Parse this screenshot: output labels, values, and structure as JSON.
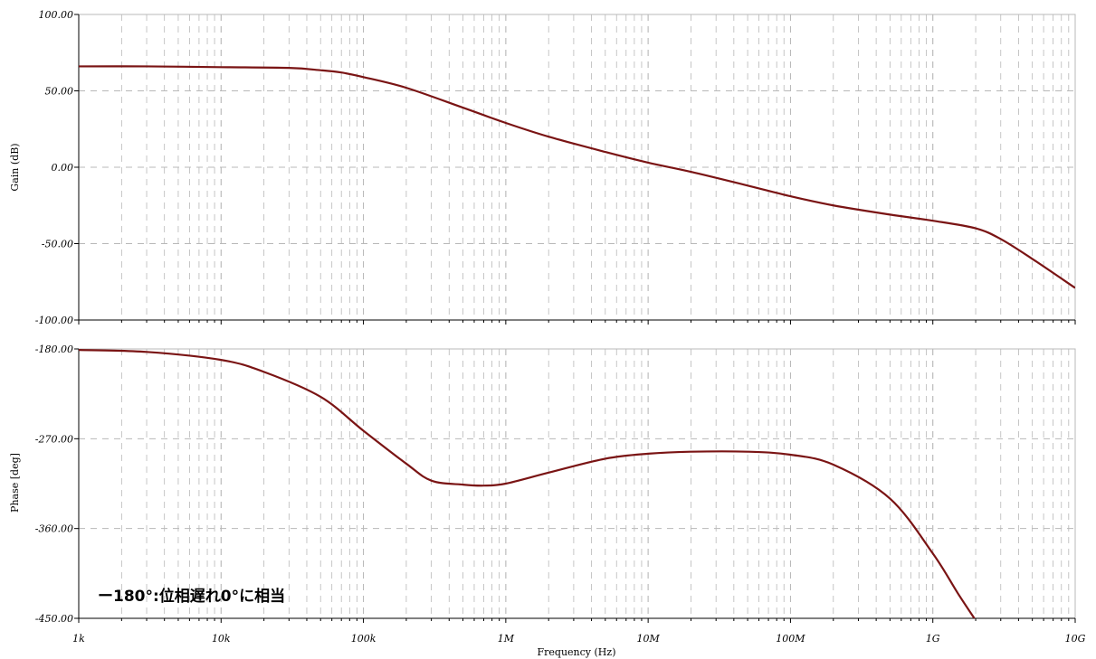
{
  "chart_data": [
    {
      "type": "line",
      "xscale": "log",
      "xlim": [
        1000,
        10000000000
      ],
      "ylim": [
        -100,
        100
      ],
      "ylabel": "Gain (dB)",
      "yticks": [
        "100.00",
        "50.00",
        "0.00",
        "-50.00",
        "-100.00"
      ],
      "ytick_values": [
        100,
        50,
        0,
        -50,
        -100
      ],
      "grid": true,
      "line_color": "#7a1414",
      "series": [
        {
          "x": [
            1000,
            3000,
            10000,
            30000,
            50000,
            70000,
            100000,
            200000,
            500000,
            1000000,
            2000000,
            5000000,
            10000000,
            20000000,
            50000000,
            100000000,
            200000000,
            500000000,
            1000000000,
            2000000000,
            3000000000,
            5000000000,
            10000000000
          ],
          "y": [
            66,
            66,
            65.5,
            65,
            63.5,
            62,
            59,
            52,
            39,
            29,
            20,
            10,
            3,
            -3,
            -12,
            -19,
            -25,
            -31,
            -35,
            -40,
            -47,
            -60,
            -79
          ]
        }
      ]
    },
    {
      "type": "line",
      "xscale": "log",
      "xlim": [
        1000,
        10000000000
      ],
      "ylim": [
        -450,
        -180
      ],
      "ylabel": "Phase [deg]",
      "xlabel": "Frequency (Hz)",
      "yticks": [
        "-180.00",
        "-270.00",
        "-360.00",
        "-450.00"
      ],
      "ytick_values": [
        -180,
        -270,
        -360,
        -450
      ],
      "xticks": [
        "1k",
        "10k",
        "100k",
        "1M",
        "10M",
        "100M",
        "1G",
        "10G"
      ],
      "xtick_values": [
        1000,
        10000,
        100000,
        1000000,
        10000000,
        100000000,
        1000000000,
        10000000000
      ],
      "grid": true,
      "line_color": "#7a1414",
      "series": [
        {
          "x": [
            1000,
            3000,
            10000,
            20000,
            50000,
            100000,
            200000,
            300000,
            500000,
            700000,
            1000000,
            2000000,
            5000000,
            10000000,
            20000000,
            50000000,
            100000000,
            200000000,
            500000000,
            1000000000,
            1500000000,
            2000000000
          ],
          "y": [
            -181,
            -183,
            -191,
            -203,
            -228,
            -262,
            -295,
            -312,
            -316,
            -317,
            -315,
            -304,
            -290,
            -285,
            -283,
            -283,
            -286,
            -296,
            -330,
            -385,
            -425,
            -452
          ]
        }
      ],
      "annotation": "ー180°:位相遅れ0°に相当"
    }
  ]
}
